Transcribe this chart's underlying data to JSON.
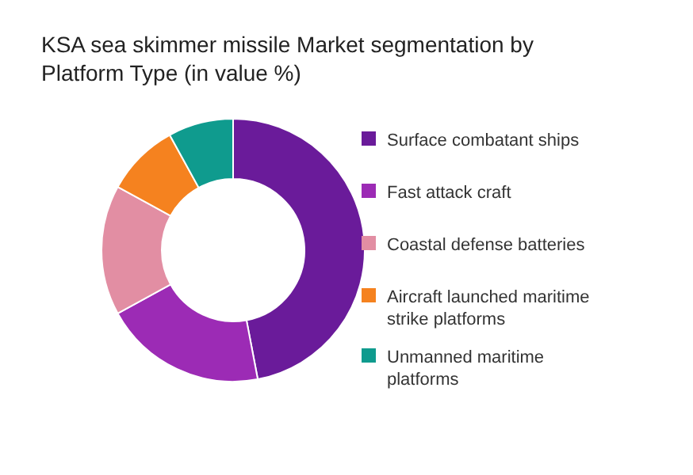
{
  "chart_data": {
    "type": "donut",
    "title": "KSA sea skimmer missile Market segmentation by Platform Type (in value %)",
    "categories": [
      "Surface combatant ships",
      "Fast attack craft",
      "Coastal defense batteries",
      "Aircraft launched maritime strike platforms",
      "Unmanned maritime platforms"
    ],
    "values": [
      47,
      20,
      16,
      9,
      8
    ],
    "colors": [
      "#6a1b9a",
      "#9c2bb5",
      "#e28ea3",
      "#f5821f",
      "#0f9b8e"
    ],
    "legend": "right"
  }
}
